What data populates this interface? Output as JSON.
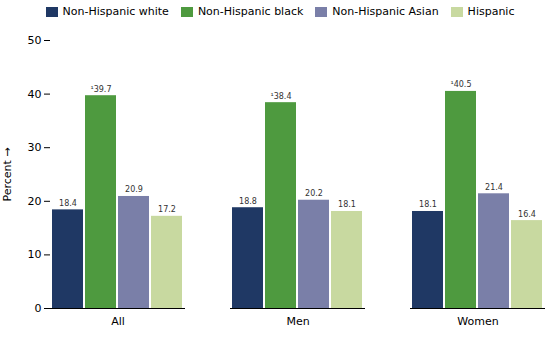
{
  "chart_data": {
    "type": "bar",
    "categories": [
      "All",
      "Men",
      "Women"
    ],
    "series": [
      {
        "name": "Non-Hispanic white",
        "color": "#1f3864",
        "values": [
          18.4,
          18.8,
          18.1
        ],
        "value_labels": [
          "18.4",
          "18.8",
          "18.1"
        ]
      },
      {
        "name": "Non-Hispanic black",
        "color": "#4e9a3f",
        "values": [
          39.7,
          38.4,
          40.5
        ],
        "value_labels": [
          "¹39.7",
          "¹38.4",
          "¹40.5"
        ]
      },
      {
        "name": "Non-Hispanic Asian",
        "color": "#7a7fa8",
        "values": [
          20.9,
          20.2,
          21.4
        ],
        "value_labels": [
          "20.9",
          "20.2",
          "21.4"
        ]
      },
      {
        "name": "Hispanic",
        "color": "#c8d9a0",
        "values": [
          17.2,
          18.1,
          16.4
        ],
        "value_labels": [
          "17.2",
          "18.1",
          "16.4"
        ]
      }
    ],
    "ylabel": "Percent",
    "ylim": [
      0,
      50
    ],
    "yticks": [
      0,
      10,
      20,
      30,
      40,
      50
    ],
    "grid": false,
    "legend": "top",
    "data_labels": true
  }
}
